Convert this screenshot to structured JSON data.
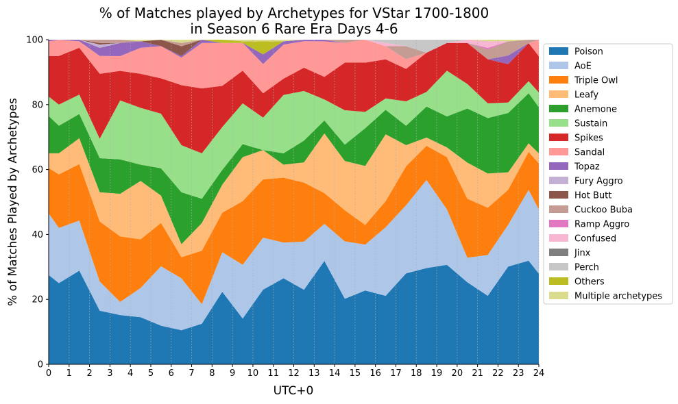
{
  "chart_data": {
    "type": "area",
    "title_line1": "% of Matches played by Archetypes for VStar 1700-1800",
    "title_line2": "in Season 6 Rare Era Days 4-6",
    "xlabel": "UTC+0",
    "ylabel": "% of Matches Played by Archetypes",
    "xlim": [
      0,
      24
    ],
    "ylim": [
      0,
      100
    ],
    "xticks": [
      0,
      1,
      2,
      3,
      4,
      5,
      6,
      7,
      8,
      9,
      10,
      11,
      12,
      13,
      14,
      15,
      16,
      17,
      18,
      19,
      20,
      21,
      22,
      23,
      24
    ],
    "yticks": [
      0,
      20,
      40,
      60,
      80,
      100
    ],
    "x_grid": true,
    "legend_position": "right",
    "x": [
      0,
      0.5,
      1.5,
      2.5,
      3.5,
      4.5,
      5.5,
      6.5,
      7.5,
      8.5,
      9.5,
      10.5,
      11.5,
      12.5,
      13.5,
      14.5,
      15.5,
      16.5,
      17.5,
      18.5,
      19.5,
      20.5,
      21.5,
      22.5,
      23.5,
      24
    ],
    "series": [
      {
        "name": "Poison",
        "color": "#1f77b4",
        "values": [
          27.5,
          25,
          29,
          16.5,
          15,
          14.5,
          12,
          10.5,
          12.5,
          22,
          14,
          23,
          26.5,
          24,
          32,
          20,
          22.5,
          21,
          28,
          29.5,
          30.5,
          25,
          21,
          28,
          30,
          27.5
        ]
      },
      {
        "name": "AoE",
        "color": "#aec7e8",
        "values": [
          19,
          17,
          15.5,
          9,
          4,
          9,
          18.5,
          16,
          6,
          12,
          16.5,
          16,
          11,
          15.5,
          11.5,
          17.5,
          14,
          21,
          21,
          27,
          17,
          7.5,
          12.5,
          12,
          20.5,
          19.5
        ]
      },
      {
        "name": "Triple Owl",
        "color": "#ff7f0e",
        "values": [
          14,
          16.5,
          17.5,
          18.5,
          20,
          15,
          13.5,
          6.5,
          16.5,
          12,
          19.5,
          18,
          20,
          19,
          9.5,
          9.5,
          6,
          8,
          12,
          10.5,
          16,
          18,
          14.5,
          10,
          11,
          14
        ]
      },
      {
        "name": "Leafy",
        "color": "#ffbb78",
        "values": [
          4.5,
          6.5,
          8,
          9,
          13,
          18,
          8.5,
          4,
          8.5,
          8.5,
          13.5,
          9,
          4,
          6.5,
          18.5,
          15,
          18,
          20.5,
          6.5,
          2.5,
          3,
          11,
          10.5,
          5,
          2.5,
          3
        ]
      },
      {
        "name": "Anemone",
        "color": "#2ca02c",
        "values": [
          11.5,
          8.5,
          7.5,
          10.5,
          10.5,
          5,
          8.5,
          16,
          7.5,
          4.5,
          4,
          0,
          3.5,
          7,
          4,
          5,
          11.5,
          7.5,
          6,
          9.5,
          9.5,
          16.5,
          17,
          17,
          14.5,
          14
        ]
      },
      {
        "name": "Sustain",
        "color": "#98df8a",
        "values": [
          6,
          6.5,
          6,
          6,
          18,
          17.5,
          17,
          14.5,
          14,
          13,
          12.5,
          10,
          18,
          16,
          6.5,
          10.5,
          5,
          3.5,
          7.5,
          4.5,
          14,
          7.5,
          4.5,
          3,
          3.5,
          4.5
        ]
      },
      {
        "name": "Spikes",
        "color": "#d62728",
        "values": [
          12.5,
          15,
          14.5,
          20,
          9,
          10.5,
          11,
          18.5,
          20,
          12.5,
          10,
          7.5,
          5,
          7.5,
          7,
          14.5,
          15,
          12,
          10,
          12,
          8.5,
          12.5,
          13.5,
          11,
          11,
          11
        ]
      },
      {
        "name": "Sandal",
        "color": "#ff9896",
        "values": [
          4.5,
          5,
          2,
          5.5,
          4.5,
          8,
          10,
          8.5,
          14,
          13,
          8.5,
          9,
          10.5,
          8.5,
          11,
          6,
          7,
          4,
          3,
          0,
          0,
          0,
          0,
          0,
          0,
          5
        ]
      },
      {
        "name": "Topaz",
        "color": "#9467bd",
        "values": [
          0.5,
          0,
          0.5,
          2.5,
          4,
          2,
          0,
          0.5,
          1,
          0,
          0,
          3,
          1,
          0.5,
          0.5,
          0,
          0,
          0,
          0,
          0,
          0,
          0,
          0,
          2.5,
          0,
          0
        ]
      },
      {
        "name": "Fury Aggro",
        "color": "#c5b0d5",
        "values": [
          0,
          0,
          0,
          1,
          0,
          0,
          0,
          0,
          0,
          0,
          0,
          0,
          0,
          0,
          0,
          0,
          0,
          0,
          0,
          0,
          0,
          0,
          0,
          0,
          0,
          0
        ]
      },
      {
        "name": "Hot Butt",
        "color": "#8c564b",
        "values": [
          0,
          0,
          0,
          0.5,
          0,
          0,
          2,
          3,
          0,
          0,
          0,
          0,
          0,
          0,
          0,
          0,
          0,
          0,
          0,
          0,
          0,
          0,
          0,
          0,
          0,
          0
        ]
      },
      {
        "name": "Cuckoo Buba",
        "color": "#c49c94",
        "values": [
          0,
          0,
          0,
          1,
          1,
          0,
          0,
          1,
          0,
          0,
          0,
          0,
          0,
          0,
          0,
          1,
          0,
          0,
          4,
          0,
          0,
          0,
          3,
          4,
          1,
          0
        ]
      },
      {
        "name": "Ramp Aggro",
        "color": "#e377c2",
        "values": [
          0,
          0,
          0,
          0,
          0,
          0,
          0,
          0,
          0,
          0,
          0,
          0,
          0,
          0,
          0,
          0,
          0,
          0,
          0,
          0,
          0,
          0,
          0.5,
          0,
          0,
          0
        ]
      },
      {
        "name": "Confused",
        "color": "#f7b6d2",
        "values": [
          0,
          0,
          0,
          0,
          0,
          0,
          0,
          0,
          0,
          0,
          0,
          0,
          0,
          0,
          0,
          0,
          0,
          1,
          0,
          0,
          0,
          1,
          2,
          0,
          0,
          0
        ]
      },
      {
        "name": "Jinx",
        "color": "#7f7f7f",
        "values": [
          0,
          0,
          0,
          0,
          0,
          0,
          0,
          0,
          0,
          0,
          0,
          0,
          0,
          0,
          0,
          0,
          0,
          0,
          0,
          0,
          0,
          0,
          0,
          0,
          0,
          0
        ]
      },
      {
        "name": "Perch",
        "color": "#c7c7c7",
        "values": [
          0,
          0,
          0,
          0,
          0,
          0,
          0,
          0,
          0,
          0,
          0,
          0,
          0,
          0,
          0,
          0,
          0,
          1,
          2,
          4,
          1,
          0,
          0,
          0,
          0,
          0
        ]
      },
      {
        "name": "Others",
        "color": "#bcbd22",
        "values": [
          0,
          0,
          0,
          0,
          0,
          0,
          0,
          0,
          0,
          1,
          0.5,
          4,
          0,
          0,
          0,
          0,
          0,
          0,
          0,
          0,
          0,
          0,
          0,
          0,
          0,
          0
        ]
      },
      {
        "name": "Multiple archetypes",
        "color": "#dbdb8d",
        "values": [
          0,
          0,
          0,
          0,
          0,
          0.5,
          0,
          1,
          0,
          0,
          0.5,
          0.5,
          0.5,
          0,
          0,
          0,
          0,
          0,
          0,
          0,
          0,
          0,
          0.5,
          0.5,
          0,
          0
        ]
      }
    ]
  }
}
